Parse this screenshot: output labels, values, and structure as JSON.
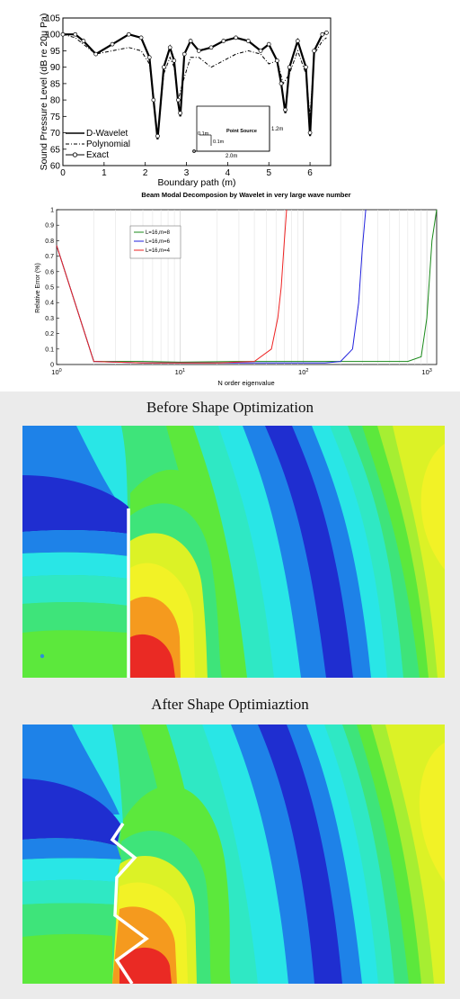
{
  "chart_data": [
    {
      "type": "line",
      "title": "",
      "xlabel": "Boundary path (m)",
      "ylabel": "Sound Pressure Level (dB re 20μ Pa)",
      "xlim": [
        0,
        6.5
      ],
      "ylim": [
        60,
        105
      ],
      "xticks": [
        "0",
        "1",
        "2",
        "3",
        "4",
        "5",
        "6"
      ],
      "yticks": [
        "60",
        "65",
        "70",
        "75",
        "80",
        "85",
        "90",
        "95",
        "100",
        "105"
      ],
      "legend_position": "bottom-left",
      "grid": false,
      "legend": [
        "D-Wavelet",
        "Polynomial",
        "Exact"
      ],
      "series": [
        {
          "name": "D-Wavelet",
          "x": [
            0,
            0.3,
            0.5,
            0.8,
            1.2,
            1.6,
            1.9,
            2.1,
            2.2,
            2.3,
            2.45,
            2.6,
            2.7,
            2.8,
            2.85,
            2.95,
            3.1,
            3.3,
            3.6,
            3.9,
            4.2,
            4.5,
            4.8,
            5.0,
            5.2,
            5.3,
            5.4,
            5.5,
            5.7,
            5.9,
            6.0,
            6.1,
            6.3,
            6.4
          ],
          "y": [
            100,
            100,
            98,
            94,
            97,
            100,
            99,
            93,
            80,
            68,
            90,
            96,
            92,
            79,
            75,
            94,
            98,
            95,
            96,
            98,
            99,
            98,
            95,
            97,
            92,
            85,
            76,
            90,
            98,
            90,
            69,
            95,
            100,
            100.5
          ]
        },
        {
          "name": "Polynomial",
          "x": [
            0,
            0.3,
            0.5,
            0.8,
            1.2,
            1.6,
            1.9,
            2.1,
            2.2,
            2.3,
            2.45,
            2.6,
            2.7,
            2.8,
            2.9,
            3.1,
            3.3,
            3.6,
            3.9,
            4.2,
            4.5,
            4.8,
            5.0,
            5.2,
            5.35,
            5.5,
            5.7,
            5.9,
            6.0,
            6.1,
            6.3,
            6.4
          ],
          "y": [
            100,
            99,
            97,
            94,
            95,
            96,
            95,
            91,
            80,
            68,
            88,
            93,
            90,
            80,
            85,
            93,
            93,
            90,
            92,
            94,
            95,
            94,
            91,
            92,
            85,
            88,
            95,
            88,
            75,
            94,
            98,
            99
          ]
        },
        {
          "name": "Exact",
          "x": [
            0,
            0.3,
            0.5,
            0.8,
            1.2,
            1.6,
            1.9,
            2.1,
            2.2,
            2.3,
            2.45,
            2.6,
            2.7,
            2.8,
            2.85,
            2.95,
            3.1,
            3.3,
            3.6,
            3.9,
            4.2,
            4.5,
            4.8,
            5.0,
            5.2,
            5.3,
            5.4,
            5.5,
            5.7,
            5.9,
            6.0,
            6.1,
            6.3,
            6.4
          ],
          "y": [
            100,
            100,
            98,
            94,
            97,
            100,
            99,
            93,
            80,
            69,
            90,
            96,
            92,
            80,
            76,
            94,
            98,
            95,
            96,
            98,
            99,
            98,
            95,
            97,
            92,
            85,
            77,
            90,
            98,
            90,
            70,
            95,
            100,
            100.5
          ]
        }
      ],
      "inset": {
        "label": "Point Source",
        "width": "2.0m",
        "height": "1.2m",
        "offset_a": "0.1m",
        "offset_b": "0.1m"
      }
    },
    {
      "type": "line",
      "title": "Beam Modal Decomposion by Wavelet in very large wave number",
      "xlabel": "N order eigenvalue",
      "ylabel": "Relative Error (%)",
      "xscale": "log",
      "xlim": [
        1,
        1200
      ],
      "ylim": [
        0,
        1
      ],
      "yticks": [
        "0",
        "0.1",
        "0.2",
        "0.3",
        "0.4",
        "0.5",
        "0.6",
        "0.7",
        "0.8",
        "0.9",
        "1"
      ],
      "xticks": [
        {
          "base": "10",
          "exp": "0"
        },
        {
          "base": "10",
          "exp": "1"
        },
        {
          "base": "10",
          "exp": "2"
        },
        {
          "base": "10",
          "exp": "3"
        }
      ],
      "grid": true,
      "legend_position": "top-left",
      "series": [
        {
          "name": "L=16,m=8",
          "color": "#1a8a1a",
          "x": [
            1,
            2,
            5,
            10,
            30,
            100,
            300,
            700,
            900,
            1000,
            1100,
            1200
          ],
          "y": [
            0.77,
            0.02,
            0.02,
            0.015,
            0.02,
            0.02,
            0.02,
            0.02,
            0.05,
            0.3,
            0.8,
            1.0
          ]
        },
        {
          "name": "L=16,m=6",
          "color": "#2222dd",
          "x": [
            1,
            2,
            5,
            10,
            50,
            100,
            150,
            200,
            250,
            280,
            300,
            320
          ],
          "y": [
            0.77,
            0.02,
            0.01,
            0.01,
            0.01,
            0.01,
            0.01,
            0.02,
            0.1,
            0.4,
            0.75,
            1.0
          ]
        },
        {
          "name": "L=16,m=4",
          "color": "#ee2222",
          "x": [
            1,
            2,
            5,
            10,
            20,
            40,
            55,
            62,
            66,
            70,
            73
          ],
          "y": [
            0.77,
            0.02,
            0.01,
            0.01,
            0.01,
            0.02,
            0.1,
            0.3,
            0.5,
            0.8,
            1.0
          ]
        }
      ]
    },
    {
      "type": "heatmap",
      "title": "Before Shape Optimization",
      "colors": [
        "#1f2ed0",
        "#1e82e8",
        "#29e6e6",
        "#2fe8c4",
        "#3ee47a",
        "#5ce83c",
        "#a6ee32",
        "#dcf226",
        "#f2f226",
        "#f59a1e",
        "#ea2a24"
      ]
    },
    {
      "type": "heatmap",
      "title": "After Shape Optimiaztion",
      "colors": [
        "#1f2ed0",
        "#1e82e8",
        "#29e6e6",
        "#2fe8c4",
        "#3ee47a",
        "#5ce83c",
        "#a6ee32",
        "#dcf226",
        "#f2f226",
        "#f59a1e",
        "#ea2a24"
      ]
    }
  ]
}
